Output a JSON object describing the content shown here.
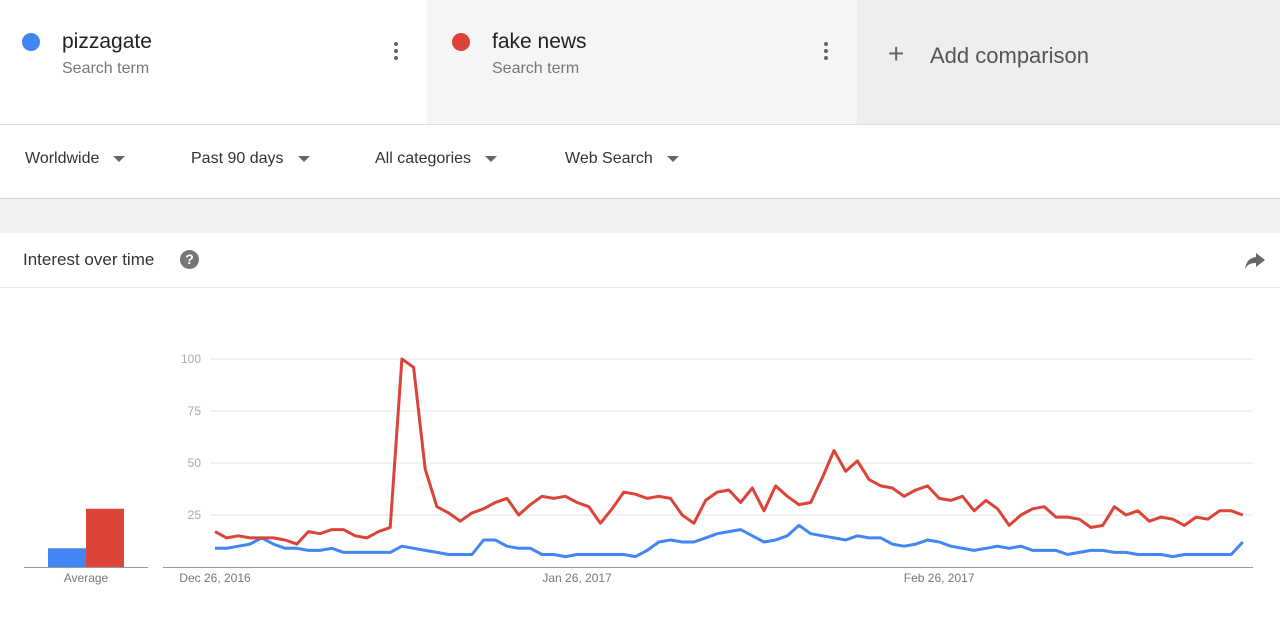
{
  "header": {
    "terms": [
      {
        "subtitle": "Search term"
      },
      {
        "subtitle": "Search term"
      }
    ],
    "add": "Add comparison"
  },
  "filters": [
    "Worldwide",
    "Past 90 days",
    "All categories",
    "Web Search"
  ],
  "section": {
    "title": "Interest over time"
  },
  "chart_data": [
    {
      "type": "bar",
      "xlabel": "Average",
      "values": [
        9,
        28
      ],
      "colors": [
        "#4285f4",
        "#db4437"
      ],
      "ylim": [
        0,
        100
      ]
    },
    {
      "type": "line",
      "ylim": [
        0,
        100
      ],
      "yticks": [
        25,
        50,
        75,
        100
      ],
      "grid": true,
      "categories": [
        "Dec 26, 2016",
        null,
        null,
        null,
        null,
        null,
        null,
        null,
        null,
        null,
        null,
        null,
        null,
        null,
        null,
        null,
        null,
        null,
        null,
        null,
        null,
        null,
        null,
        null,
        null,
        null,
        null,
        null,
        null,
        null,
        null,
        "Jan 26, 2017",
        null,
        null,
        null,
        null,
        null,
        null,
        null,
        null,
        null,
        null,
        null,
        null,
        null,
        null,
        null,
        null,
        null,
        null,
        null,
        null,
        null,
        null,
        null,
        null,
        null,
        null,
        null,
        null,
        null,
        null,
        "Feb 26, 2017",
        null,
        null,
        null,
        null,
        null,
        null,
        null,
        null,
        null,
        null,
        null,
        null,
        null,
        null,
        null,
        null,
        null,
        null,
        null,
        null,
        null,
        null,
        null,
        null,
        null,
        null
      ],
      "series": [
        {
          "name": "pizzagate",
          "color": "#4285f4",
          "values": [
            9,
            9,
            10,
            11,
            14,
            11,
            9,
            9,
            8,
            8,
            9,
            7,
            7,
            7,
            7,
            7,
            10,
            9,
            8,
            7,
            6,
            6,
            6,
            13,
            13,
            10,
            9,
            9,
            6,
            6,
            5,
            6,
            6,
            6,
            6,
            6,
            5,
            8,
            12,
            13,
            12,
            12,
            14,
            16,
            17,
            18,
            15,
            12,
            13,
            15,
            20,
            16,
            15,
            14,
            13,
            15,
            14,
            14,
            11,
            10,
            11,
            13,
            12,
            10,
            9,
            8,
            9,
            10,
            9,
            10,
            8,
            8,
            8,
            6,
            7,
            8,
            8,
            7,
            7,
            6,
            6,
            6,
            5,
            6,
            6,
            6,
            6,
            6,
            12
          ]
        },
        {
          "name": "fake news",
          "color": "#db4437",
          "values": [
            17,
            14,
            15,
            14,
            14,
            14,
            13,
            11,
            17,
            16,
            18,
            18,
            15,
            14,
            17,
            19,
            100,
            96,
            47,
            29,
            26,
            22,
            26,
            28,
            31,
            33,
            25,
            30,
            34,
            33,
            34,
            31,
            29,
            21,
            28,
            36,
            35,
            33,
            34,
            33,
            25,
            21,
            32,
            36,
            37,
            31,
            38,
            27,
            39,
            34,
            30,
            31,
            43,
            56,
            46,
            51,
            42,
            39,
            38,
            34,
            37,
            39,
            33,
            32,
            34,
            27,
            32,
            28,
            20,
            25,
            28,
            29,
            24,
            24,
            23,
            19,
            20,
            29,
            25,
            27,
            22,
            24,
            23,
            20,
            24,
            23,
            27,
            27,
            25
          ]
        }
      ]
    }
  ]
}
